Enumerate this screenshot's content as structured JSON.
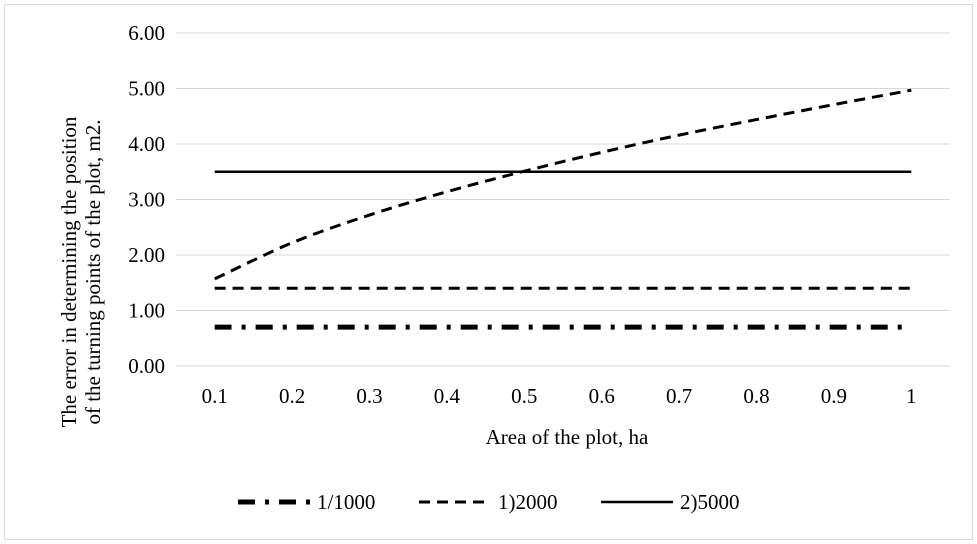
{
  "chart_data": {
    "type": "line",
    "x": [
      0.1,
      0.2,
      0.3,
      0.4,
      0.5,
      0.6,
      0.7,
      0.8,
      0.9,
      1
    ],
    "x_tick_labels": [
      "0.1",
      "0.2",
      "0.3",
      "0.4",
      "0.5",
      "0.6",
      "0.7",
      "0.8",
      "0.9",
      "1"
    ],
    "y_tick_labels": [
      "0.00",
      "1.00",
      "2.00",
      "3.00",
      "4.00",
      "5.00",
      "6.00"
    ],
    "ylim": [
      0,
      6
    ],
    "xlabel": "Area of the plot, ha",
    "ylabel_lines": [
      "The error in determining the position",
      "of the turning points of the plot, m2."
    ],
    "grid": "horizontal",
    "legend_position": "bottom",
    "series": [
      {
        "name": "1/1000",
        "style": "dash-dot",
        "color": "#000000",
        "values": [
          0.7,
          0.7,
          0.7,
          0.7,
          0.7,
          0.7,
          0.7,
          0.7,
          0.7,
          0.7
        ]
      },
      {
        "name": "1)2000",
        "style": "dashed",
        "color": "#000000",
        "values": [
          1.57,
          2.22,
          2.72,
          3.14,
          3.51,
          3.85,
          4.16,
          4.44,
          4.71,
          4.97
        ]
      },
      {
        "name": "1)2000",
        "style": "dashed",
        "color": "#000000",
        "legend": false,
        "values": [
          1.4,
          1.4,
          1.4,
          1.4,
          1.4,
          1.4,
          1.4,
          1.4,
          1.4,
          1.4
        ]
      },
      {
        "name": "2)5000",
        "style": "solid",
        "color": "#000000",
        "values": [
          3.5,
          3.5,
          3.5,
          3.5,
          3.5,
          3.5,
          3.5,
          3.5,
          3.5,
          3.5
        ]
      }
    ]
  }
}
